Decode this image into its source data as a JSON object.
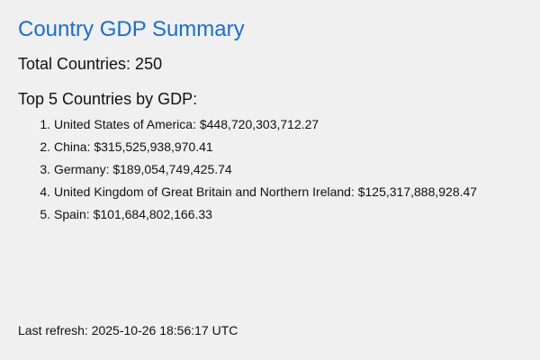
{
  "header": {
    "title": "Country GDP Summary"
  },
  "summary": {
    "total_text": "Total Countries: 250"
  },
  "top": {
    "heading": "Top 5 Countries by GDP:",
    "items": [
      {
        "rank": "1.",
        "text": "United States of America: $448,720,303,712.27"
      },
      {
        "rank": "2.",
        "text": "China: $315,525,938,970.41"
      },
      {
        "rank": "3.",
        "text": "Germany: $189,054,749,425.74"
      },
      {
        "rank": "4.",
        "text": "United Kingdom of Great Britain and Northern Ireland: $125,317,888,928.47"
      },
      {
        "rank": "5.",
        "text": "Spain: $101,684,802,166.33"
      }
    ]
  },
  "footer": {
    "refresh_text": "Last refresh: 2025-10-26 18:56:17 UTC"
  },
  "colors": {
    "title": "#1a6fc9",
    "background": "#f0f0f0",
    "text": "#111111"
  }
}
